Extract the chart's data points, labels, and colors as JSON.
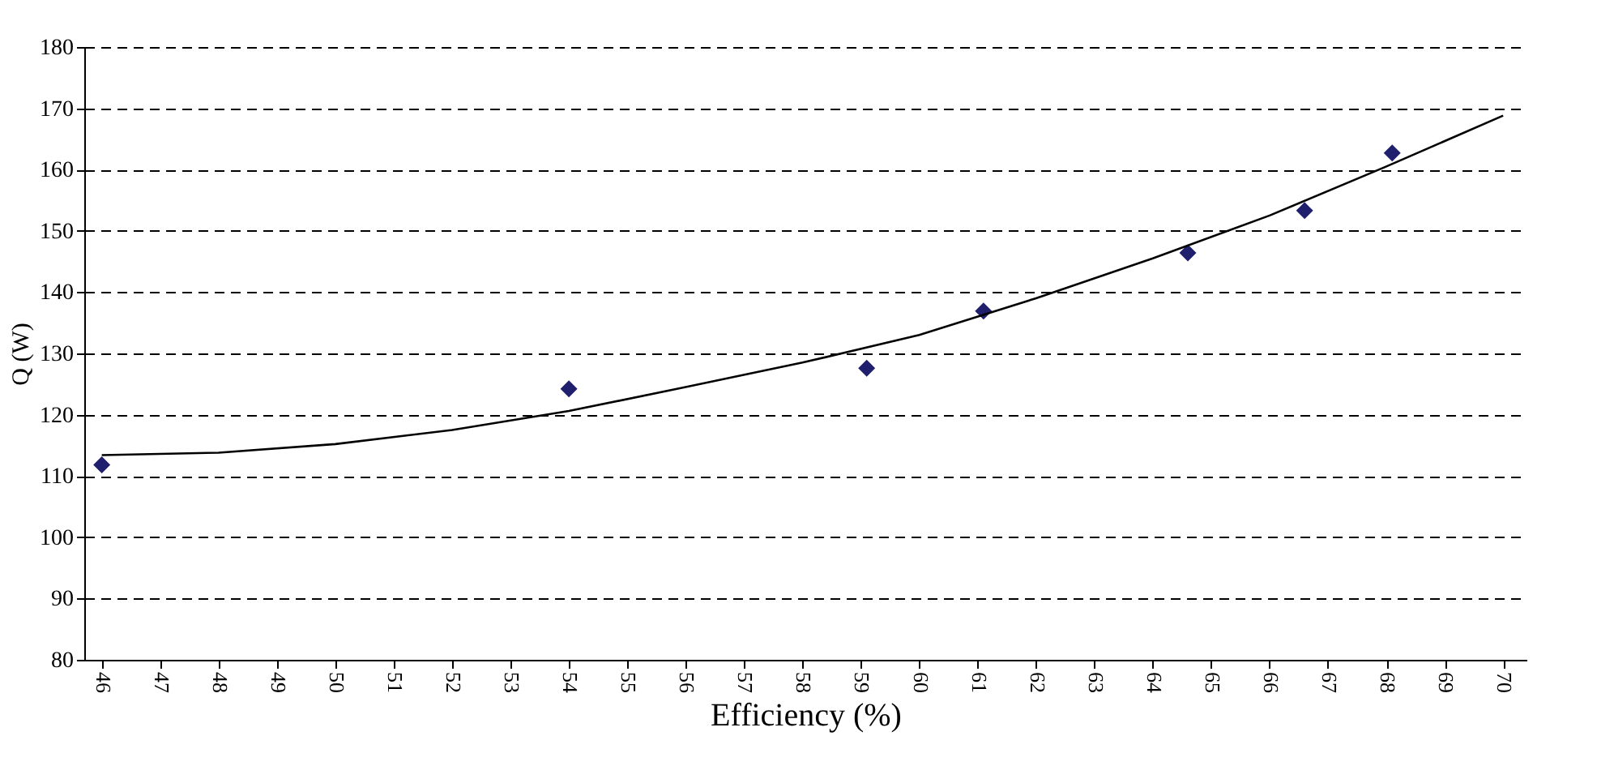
{
  "chart_data": {
    "type": "scatter",
    "xlabel": "Efficiency (%)",
    "ylabel": "Q (W)",
    "xlim": [
      45.7,
      70.4
    ],
    "xticks": [
      46,
      47,
      48,
      49,
      50,
      51,
      52,
      53,
      54,
      55,
      56,
      57,
      58,
      59,
      60,
      61,
      62,
      63,
      64,
      65,
      66,
      67,
      68,
      69,
      70
    ],
    "ylim": [
      80,
      180
    ],
    "yticks": [
      80,
      90,
      100,
      110,
      120,
      130,
      140,
      150,
      160,
      170,
      180
    ],
    "grid": "y",
    "series": [
      {
        "marker": "diamond",
        "color": "#1f1f6e",
        "x": [
          46,
          54,
          59.1,
          61.1,
          64.6,
          66.6,
          68.1
        ],
        "values": [
          111.8,
          124.2,
          127.6,
          136.9,
          146.4,
          153.3,
          162.7
        ]
      },
      {
        "type": "line",
        "line_style": "solid",
        "color": "#000000",
        "x": [
          46,
          48,
          50,
          52,
          54,
          56,
          58,
          60,
          62,
          64,
          66,
          68,
          70
        ],
        "values": [
          113.4,
          113.8,
          115.2,
          117.5,
          120.6,
          124.5,
          128.5,
          133,
          139,
          145.5,
          152.5,
          160.5,
          168.8
        ]
      }
    ]
  }
}
